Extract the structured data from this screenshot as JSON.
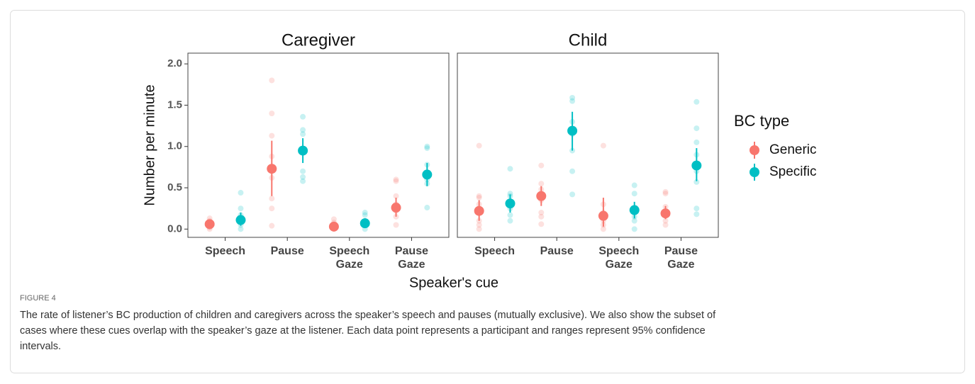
{
  "ylim": [
    -0.1,
    2.13
  ],
  "yticks": [
    {
      "value": 0,
      "label": "0.0"
    },
    {
      "value": 0.5,
      "label": "0.5"
    },
    {
      "value": 1,
      "label": "1.0"
    },
    {
      "value": 1.5,
      "label": "1.5"
    },
    {
      "value": 2,
      "label": "2.0"
    }
  ],
  "y_label": "Number per minute",
  "x_label": "Speaker's cue",
  "legend_title": "BC type",
  "caption": {
    "label": "FIGURE 4",
    "lines": [
      "The rate of listener’s BC production of children and caregivers across the speaker’s speech and pauses (mutually exclusive). We also show the subset of",
      "cases where these cues overlap with the speaker’s gaze at the listener. Each data point represents a participant and ranges represent 95% confidence",
      "intervals."
    ]
  },
  "chart_data": [
    {
      "type": "dot",
      "title": "Caregiver",
      "categories": [
        [
          "Speech"
        ],
        [
          "Pause"
        ],
        [
          "Speech",
          "Gaze"
        ],
        [
          "Pause",
          "Gaze"
        ]
      ],
      "series": [
        {
          "name": "Generic",
          "color": "#f8766d",
          "values": [
            0.06,
            0.73,
            0.03,
            0.26
          ],
          "ci_low": [
            0.02,
            0.4,
            0.01,
            0.15
          ],
          "ci_high": [
            0.1,
            1.07,
            0.06,
            0.38
          ],
          "points": [
            [
              0,
              0.02,
              0.05,
              0.08,
              0.1,
              0.13
            ],
            [
              0.04,
              0.25,
              0.37,
              0.62,
              0.88,
              1.13,
              1.4,
              1.8
            ],
            [
              0,
              0.02,
              0.05,
              0.08,
              0.12
            ],
            [
              0.05,
              0.15,
              0.22,
              0.3,
              0.4,
              0.58,
              0.6
            ]
          ]
        },
        {
          "name": "Specific",
          "color": "#00bfc4",
          "values": [
            0.11,
            0.95,
            0.07,
            0.66
          ],
          "ci_low": [
            0.04,
            0.8,
            0.02,
            0.52
          ],
          "ci_high": [
            0.2,
            1.1,
            0.13,
            0.8
          ],
          "points": [
            [
              0,
              0.05,
              0.1,
              0.17,
              0.25,
              0.44
            ],
            [
              0.58,
              0.63,
              0.7,
              0.95,
              1.15,
              1.2,
              1.36
            ],
            [
              0,
              0.05,
              0.1,
              0.17,
              0.2
            ],
            [
              0.26,
              0.55,
              0.6,
              0.65,
              0.78,
              0.98,
              1
            ]
          ]
        }
      ]
    },
    {
      "type": "dot",
      "title": "Child",
      "categories": [
        [
          "Speech"
        ],
        [
          "Pause"
        ],
        [
          "Speech",
          "Gaze"
        ],
        [
          "Pause",
          "Gaze"
        ]
      ],
      "series": [
        {
          "name": "Generic",
          "color": "#f8766d",
          "values": [
            0.22,
            0.4,
            0.16,
            0.19
          ],
          "ci_low": [
            0.1,
            0.28,
            0.03,
            0.12
          ],
          "ci_high": [
            0.35,
            0.52,
            0.38,
            0.28
          ],
          "points": [
            [
              0,
              0.05,
              0.1,
              0.2,
              0.3,
              0.38,
              0.4,
              1.01
            ],
            [
              0.06,
              0.15,
              0.2,
              0.35,
              0.48,
              0.55,
              0.77
            ],
            [
              0,
              0.05,
              0.1,
              0.2,
              0.3,
              1.01
            ],
            [
              0.05,
              0.1,
              0.2,
              0.27,
              0.43,
              0.45
            ]
          ]
        },
        {
          "name": "Specific",
          "color": "#00bfc4",
          "values": [
            0.31,
            1.19,
            0.23,
            0.77
          ],
          "ci_low": [
            0.2,
            0.95,
            0.13,
            0.58
          ],
          "ci_high": [
            0.42,
            1.42,
            0.33,
            0.98
          ],
          "points": [
            [
              0.1,
              0.17,
              0.25,
              0.33,
              0.4,
              0.43,
              0.73
            ],
            [
              0.42,
              0.7,
              0.95,
              1.15,
              1.3,
              1.55,
              1.59
            ],
            [
              0,
              0.1,
              0.15,
              0.25,
              0.43,
              0.53
            ],
            [
              0.18,
              0.25,
              0.57,
              0.7,
              0.9,
              1.05,
              1.22,
              1.54
            ]
          ]
        }
      ]
    }
  ]
}
